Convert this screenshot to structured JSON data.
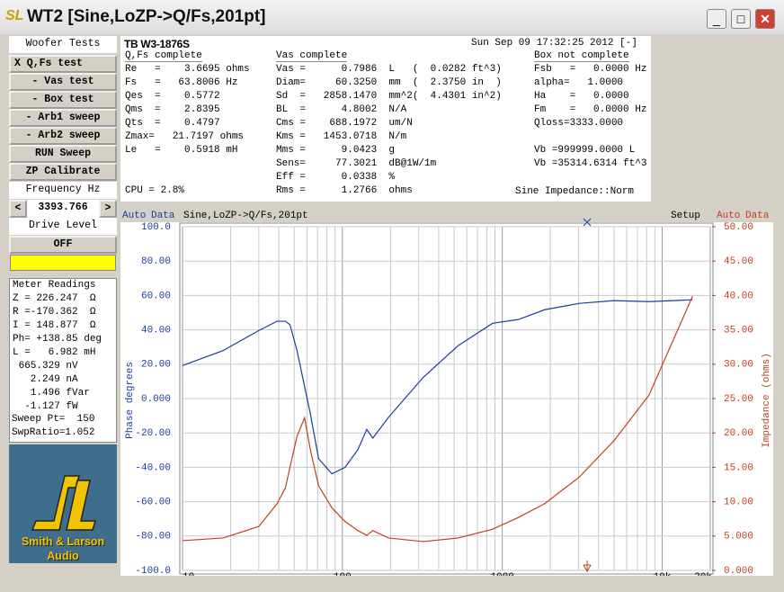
{
  "window": {
    "title": "WT2 [Sine,LoZP->Q/Fs,201pt]"
  },
  "sidebar": {
    "section": "Woofer Tests",
    "buttons": [
      "X Q,Fs test",
      "- Vas test",
      "- Box test",
      "- Arb1 sweep",
      "- Arb2 sweep",
      "RUN Sweep",
      "ZP Calibrate"
    ],
    "frequency": {
      "label": "Frequency Hz",
      "prev": "<",
      "value": 3393.766,
      "next": ">"
    },
    "drive": {
      "label": "Drive Level",
      "button": "OFF"
    },
    "meter": {
      "title": "Meter Readings",
      "lines": [
        "Z = 226.247  Ω",
        "R =-170.362  Ω",
        "I = 148.877  Ω",
        "Ph= +138.85 deg",
        "L =   6.982 mH",
        " 665.329 nV",
        "   2.249 nA",
        "   1.496 fVar",
        "  -1.127 fW"
      ]
    },
    "sweep": [
      "Sweep Pt=  150",
      "SwpRatio=1.052"
    ],
    "logo": [
      "Smith & Larson",
      "Audio"
    ]
  },
  "info": {
    "title": "TB W3-1876S",
    "date": "Sun Sep 09 17:32:25 2012 [-]",
    "columns": [
      {
        "heading": "Q,Fs complete",
        "lines": [
          "Re   =    3.6695 ohms",
          "Fs   =   63.8006 Hz",
          "Qes  =    0.5772",
          "Qms  =    2.8395",
          "Qts  =    0.4797",
          "Zmax=   21.7197 ohms",
          "Le   =    0.5918 mH",
          null,
          null,
          "CPU = 2.8%"
        ]
      },
      {
        "heading": "Vas complete",
        "lines": [
          "Vas =      0.7986  L   (  0.0282 ft^3)",
          "Diam=     60.3250  mm  (  2.3750 in  )",
          "Sd  =   2858.1470  mm^2(  4.4301 in^2)",
          "BL  =      4.8002  N/A",
          "Cms =    688.1972  um/N",
          "Kms =   1453.0718  N/m",
          "Mms =      9.0423  g",
          "Sens=     77.3021  dB@1W/1m",
          "Eff =      0.0338  %",
          "Rms =      1.2766  ohms"
        ]
      },
      {
        "heading": "Box not complete",
        "lines": [
          "Fsb   =   0.0000 Hz",
          "alpha=   1.0000",
          "Ha    =   0.0000",
          "Fm    =   0.0000 Hz",
          "Qloss=3333.0000",
          null,
          "Vb =999999.0000 L",
          "Vb =35314.6314 ft^3",
          null,
          null
        ]
      }
    ],
    "footer": "Sine Impedance::Norm"
  },
  "chart_toolbar": {
    "left": [
      "Auto",
      "Data"
    ],
    "setup": "Setup",
    "right": [
      "Auto",
      "Data"
    ]
  },
  "chart_data": {
    "type": "line",
    "title": "Sine,LoZP->Q/Fs,201pt",
    "ylabel": "Phase degrees",
    "y2label": "Impedance (ohms)",
    "xscale": "log",
    "grid": true,
    "xlim": [
      10,
      20000
    ],
    "xticks": [
      10,
      100,
      1000,
      {
        "value": 10000,
        "label": "10k"
      },
      {
        "value": 20000,
        "label": "20k"
      }
    ],
    "xminor": [
      20,
      30,
      40,
      50,
      60,
      70,
      80,
      90,
      200,
      300,
      400,
      500,
      600,
      700,
      800,
      900,
      2000,
      3000,
      4000,
      5000,
      6000,
      7000,
      8000,
      9000
    ],
    "ylim": [
      -100,
      100
    ],
    "yticks": [
      {
        "value": 100,
        "label": "100.0"
      },
      {
        "value": 80,
        "label": "80.00"
      },
      {
        "value": 60,
        "label": "60.00"
      },
      {
        "value": 40,
        "label": "40.00"
      },
      {
        "value": 20,
        "label": "20.00"
      },
      {
        "value": 0,
        "label": "0.000"
      },
      {
        "value": -20,
        "label": "-20.00"
      },
      {
        "value": -40,
        "label": "-40.00"
      },
      {
        "value": -60,
        "label": "-60.00"
      },
      {
        "value": -80,
        "label": "-80.00"
      },
      {
        "value": -100,
        "label": "-100.0"
      }
    ],
    "y2lim": [
      0,
      50
    ],
    "y2ticks": [
      {
        "value": 50,
        "label": "50.00"
      },
      {
        "value": 45,
        "label": "45.00"
      },
      {
        "value": 40,
        "label": "40.00"
      },
      {
        "value": 35,
        "label": "35.00"
      },
      {
        "value": 30,
        "label": "30.00"
      },
      {
        "value": 25,
        "label": "25.00"
      },
      {
        "value": 20,
        "label": "20.00"
      },
      {
        "value": 15,
        "label": "15.00"
      },
      {
        "value": 10,
        "label": "10.00"
      },
      {
        "value": 5,
        "label": "5.000"
      },
      {
        "value": 0,
        "label": "0.000"
      }
    ],
    "x": [
      10,
      18,
      30,
      39,
      44,
      47,
      52,
      58,
      63,
      71,
      86,
      104,
      125,
      142,
      155,
      194,
      320,
      528,
      870,
      1260,
      1840,
      3040,
      5010,
      8270,
      15500
    ],
    "series": [
      {
        "color": "#1c3c9c",
        "values": [
          19.2,
          28,
          39.6,
          45,
          45,
          43,
          28,
          7,
          -8.7,
          -35,
          -43.8,
          -40,
          -29.7,
          -18,
          -23,
          -11,
          12.3,
          30.7,
          43.8,
          46,
          51.7,
          55.4,
          57,
          56.4,
          57.5
        ]
      },
      {
        "color": "#c0401c",
        "axis": "y2",
        "values": [
          4.33,
          4.72,
          6.4,
          9.7,
          12.0,
          15,
          19.5,
          22.2,
          17.6,
          12.3,
          9.1,
          7.1,
          5.8,
          5.1,
          5.8,
          4.72,
          4.2,
          4.72,
          6.0,
          7.7,
          9.7,
          13.6,
          18.9,
          25.5,
          39.9
        ]
      }
    ]
  }
}
